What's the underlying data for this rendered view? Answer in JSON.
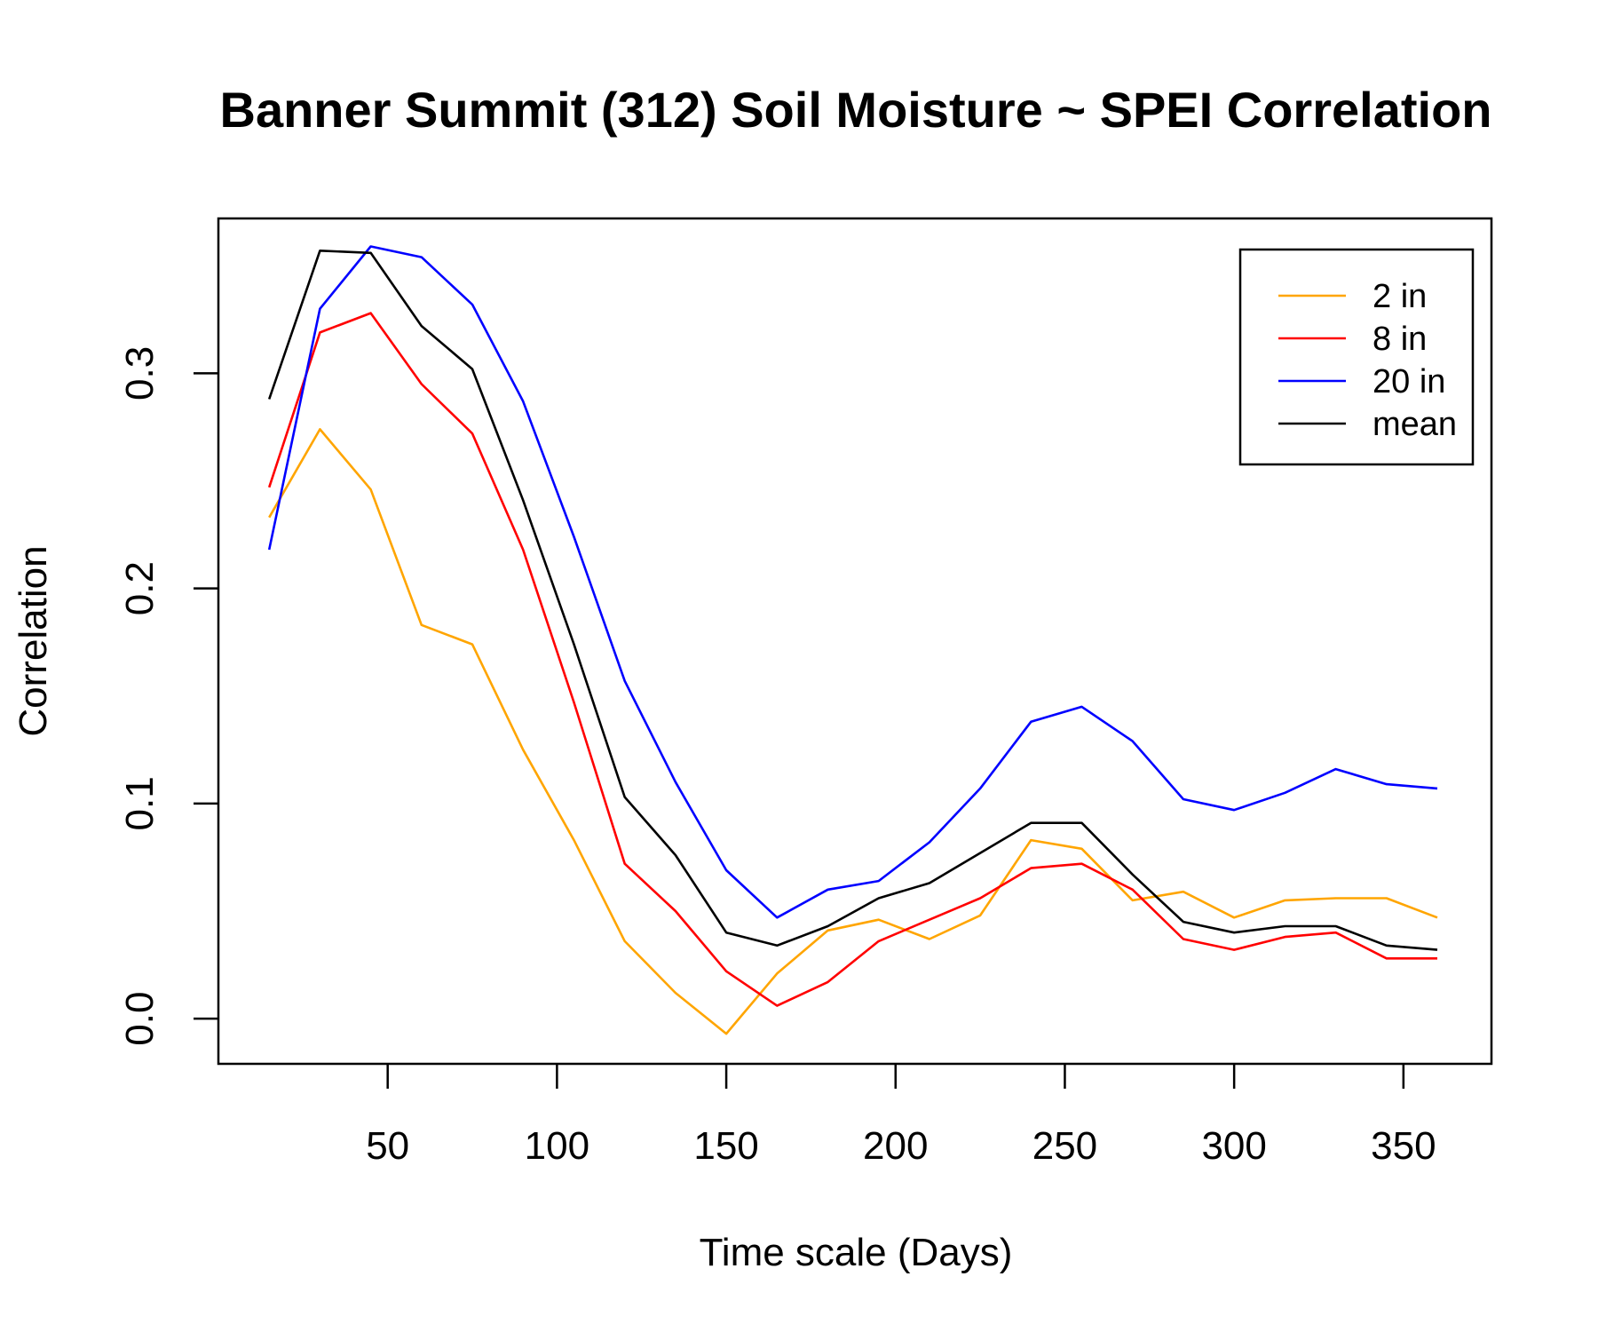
{
  "chart_data": {
    "type": "line",
    "title": "Banner Summit (312) Soil Moisture ~ SPEI Correlation",
    "xlabel": "Time scale (Days)",
    "ylabel": "Correlation",
    "xlim": [
      0,
      376
    ],
    "ylim": [
      -0.021,
      0.372
    ],
    "x_ticks": [
      50,
      100,
      150,
      200,
      250,
      300,
      350
    ],
    "y_ticks": [
      0.0,
      0.1,
      0.2,
      0.3
    ],
    "y_tick_labels": [
      "0.0",
      "0.1",
      "0.2",
      "0.3"
    ],
    "grid": false,
    "legend_position": "top-right",
    "x": [
      15,
      30,
      45,
      60,
      75,
      90,
      105,
      120,
      135,
      150,
      165,
      180,
      195,
      210,
      225,
      240,
      255,
      270,
      285,
      300,
      315,
      330,
      345,
      360
    ],
    "series": [
      {
        "name": "2 in",
        "color": "#FFA500",
        "values": [
          0.233,
          0.274,
          0.246,
          0.183,
          0.174,
          0.125,
          0.083,
          0.036,
          0.012,
          -0.007,
          0.021,
          0.041,
          0.046,
          0.037,
          0.048,
          0.083,
          0.079,
          0.055,
          0.059,
          0.047,
          0.055,
          0.056,
          0.056,
          0.047
        ]
      },
      {
        "name": "8 in",
        "color": "#FF0000",
        "values": [
          0.247,
          0.319,
          0.328,
          0.295,
          0.272,
          0.218,
          0.147,
          0.072,
          0.05,
          0.022,
          0.006,
          0.017,
          0.036,
          0.046,
          0.056,
          0.07,
          0.072,
          0.06,
          0.037,
          0.032,
          0.038,
          0.04,
          0.028,
          0.028
        ]
      },
      {
        "name": "20 in",
        "color": "#0000FF",
        "values": [
          0.218,
          0.33,
          0.359,
          0.354,
          0.332,
          0.287,
          0.224,
          0.157,
          0.11,
          0.069,
          0.047,
          0.06,
          0.064,
          0.082,
          0.107,
          0.138,
          0.145,
          0.129,
          0.102,
          0.097,
          0.105,
          0.116,
          0.109,
          0.107
        ]
      },
      {
        "name": "mean",
        "color": "#000000",
        "values": [
          0.288,
          0.357,
          0.356,
          0.322,
          0.302,
          0.241,
          0.174,
          0.103,
          0.076,
          0.04,
          0.034,
          0.043,
          0.056,
          0.063,
          0.077,
          0.091,
          0.091,
          0.067,
          0.045,
          0.04,
          0.043,
          0.043,
          0.034,
          0.032
        ]
      }
    ]
  }
}
